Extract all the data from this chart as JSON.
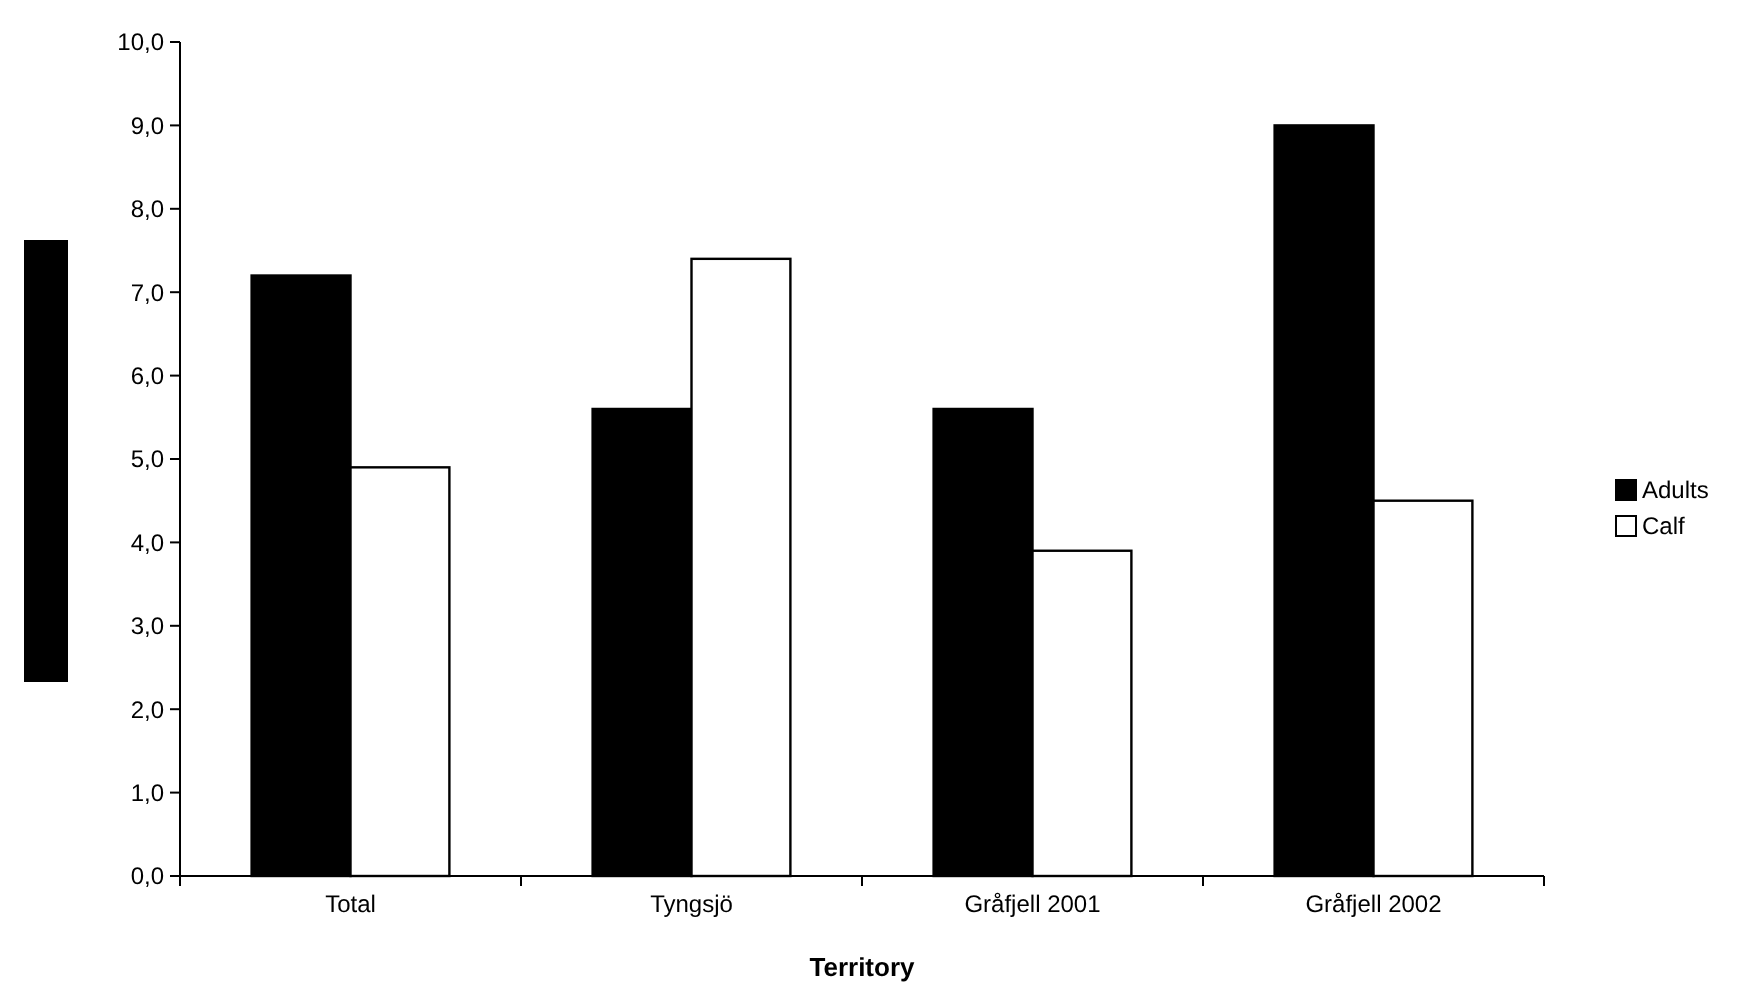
{
  "chart_data": {
    "type": "bar",
    "xlabel": "Territory",
    "categories": [
      "Total",
      "Tyngsjö",
      "Gråfjell 2001",
      "Gråfjell 2002"
    ],
    "series": [
      {
        "name": "Adults",
        "color": "#000000",
        "values": [
          7.2,
          5.6,
          5.6,
          9.0
        ]
      },
      {
        "name": "Calf",
        "color": "#ffffff",
        "values": [
          4.9,
          7.4,
          3.9,
          4.5
        ]
      }
    ],
    "ylim": [
      0,
      10
    ],
    "yticks": [
      {
        "value": 0,
        "label": "0,0"
      },
      {
        "value": 1,
        "label": "1,0"
      },
      {
        "value": 2,
        "label": "2,0"
      },
      {
        "value": 3,
        "label": "3,0"
      },
      {
        "value": 4,
        "label": "4,0"
      },
      {
        "value": 5,
        "label": "5,0"
      },
      {
        "value": 6,
        "label": "6,0"
      },
      {
        "value": 7,
        "label": "7,0"
      },
      {
        "value": 8,
        "label": "8,0"
      },
      {
        "value": 9,
        "label": "9,0"
      },
      {
        "value": 10,
        "label": "10,0"
      }
    ],
    "grid": false,
    "legend": "right"
  }
}
